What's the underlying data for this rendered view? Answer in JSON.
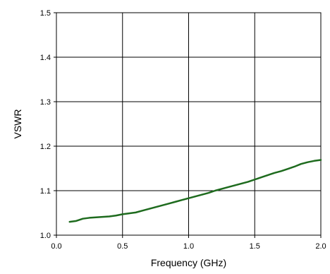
{
  "chart_data": {
    "type": "line",
    "title": "",
    "xlabel": "Frequency (GHz)",
    "ylabel": "VSWR",
    "xlim": [
      0.0,
      2.0
    ],
    "ylim": [
      1.0,
      1.5
    ],
    "xticks": [
      "0.0",
      "0.5",
      "1.0",
      "1.5",
      "2.0"
    ],
    "yticks": [
      "1.0",
      "1.1",
      "1.2",
      "1.3",
      "1.4",
      "1.5"
    ],
    "grid": true,
    "series": [
      {
        "color": "#1e6b1e",
        "x": [
          0.1,
          0.15,
          0.2,
          0.25,
          0.3,
          0.35,
          0.4,
          0.45,
          0.5,
          0.55,
          0.6,
          0.65,
          0.7,
          0.75,
          0.8,
          0.85,
          0.9,
          0.95,
          1.0,
          1.05,
          1.1,
          1.15,
          1.2,
          1.25,
          1.3,
          1.35,
          1.4,
          1.45,
          1.5,
          1.55,
          1.6,
          1.65,
          1.7,
          1.75,
          1.8,
          1.85,
          1.9,
          1.95,
          2.0
        ],
        "y": [
          1.03,
          1.032,
          1.037,
          1.039,
          1.04,
          1.041,
          1.042,
          1.044,
          1.047,
          1.049,
          1.051,
          1.055,
          1.059,
          1.063,
          1.067,
          1.071,
          1.075,
          1.079,
          1.083,
          1.087,
          1.091,
          1.095,
          1.1,
          1.104,
          1.108,
          1.112,
          1.116,
          1.12,
          1.125,
          1.13,
          1.135,
          1.14,
          1.144,
          1.149,
          1.154,
          1.16,
          1.164,
          1.167,
          1.169
        ]
      }
    ]
  }
}
